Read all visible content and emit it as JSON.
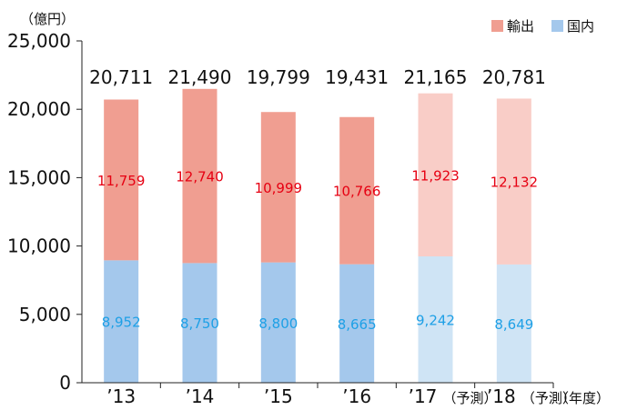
{
  "chart_data": {
    "type": "bar",
    "stacked": true,
    "y_unit": "（億円）",
    "x_unit": "（年度）",
    "ylim": [
      0,
      25000
    ],
    "yticks": [
      "0",
      "5,000",
      "10,000",
      "15,000",
      "20,000",
      "25,000"
    ],
    "ytick_values": [
      0,
      5000,
      10000,
      15000,
      20000,
      25000
    ],
    "categories": [
      "’13",
      "’14",
      "’15",
      "’16",
      "’17",
      "’18"
    ],
    "forecast_suffix": "（予測）",
    "forecast": [
      false,
      false,
      false,
      false,
      true,
      true
    ],
    "totals": [
      20711,
      21490,
      19799,
      19431,
      21165,
      20781
    ],
    "total_labels": [
      "20,711",
      "21,490",
      "19,799",
      "19,431",
      "21,165",
      "20,781"
    ],
    "series": [
      {
        "name": "国内",
        "values": [
          8952,
          8750,
          8800,
          8665,
          9242,
          8649
        ],
        "labels": [
          "8,952",
          "8,750",
          "8,800",
          "8,665",
          "9,242",
          "8,649"
        ],
        "color": "#a4c8ec",
        "forecast_color": "#cfe4f5",
        "label_color": "#1ea0e6"
      },
      {
        "name": "輸出",
        "values": [
          11759,
          12740,
          10999,
          10766,
          11923,
          12132
        ],
        "labels": [
          "11,759",
          "12,740",
          "10,999",
          "10,766",
          "11,923",
          "12,132"
        ],
        "color": "#f09e91",
        "forecast_color": "#f9cdc7",
        "label_color": "#e60012"
      }
    ],
    "legend": [
      "輸出",
      "国内"
    ],
    "legend_position": "top-right",
    "grid": false
  }
}
